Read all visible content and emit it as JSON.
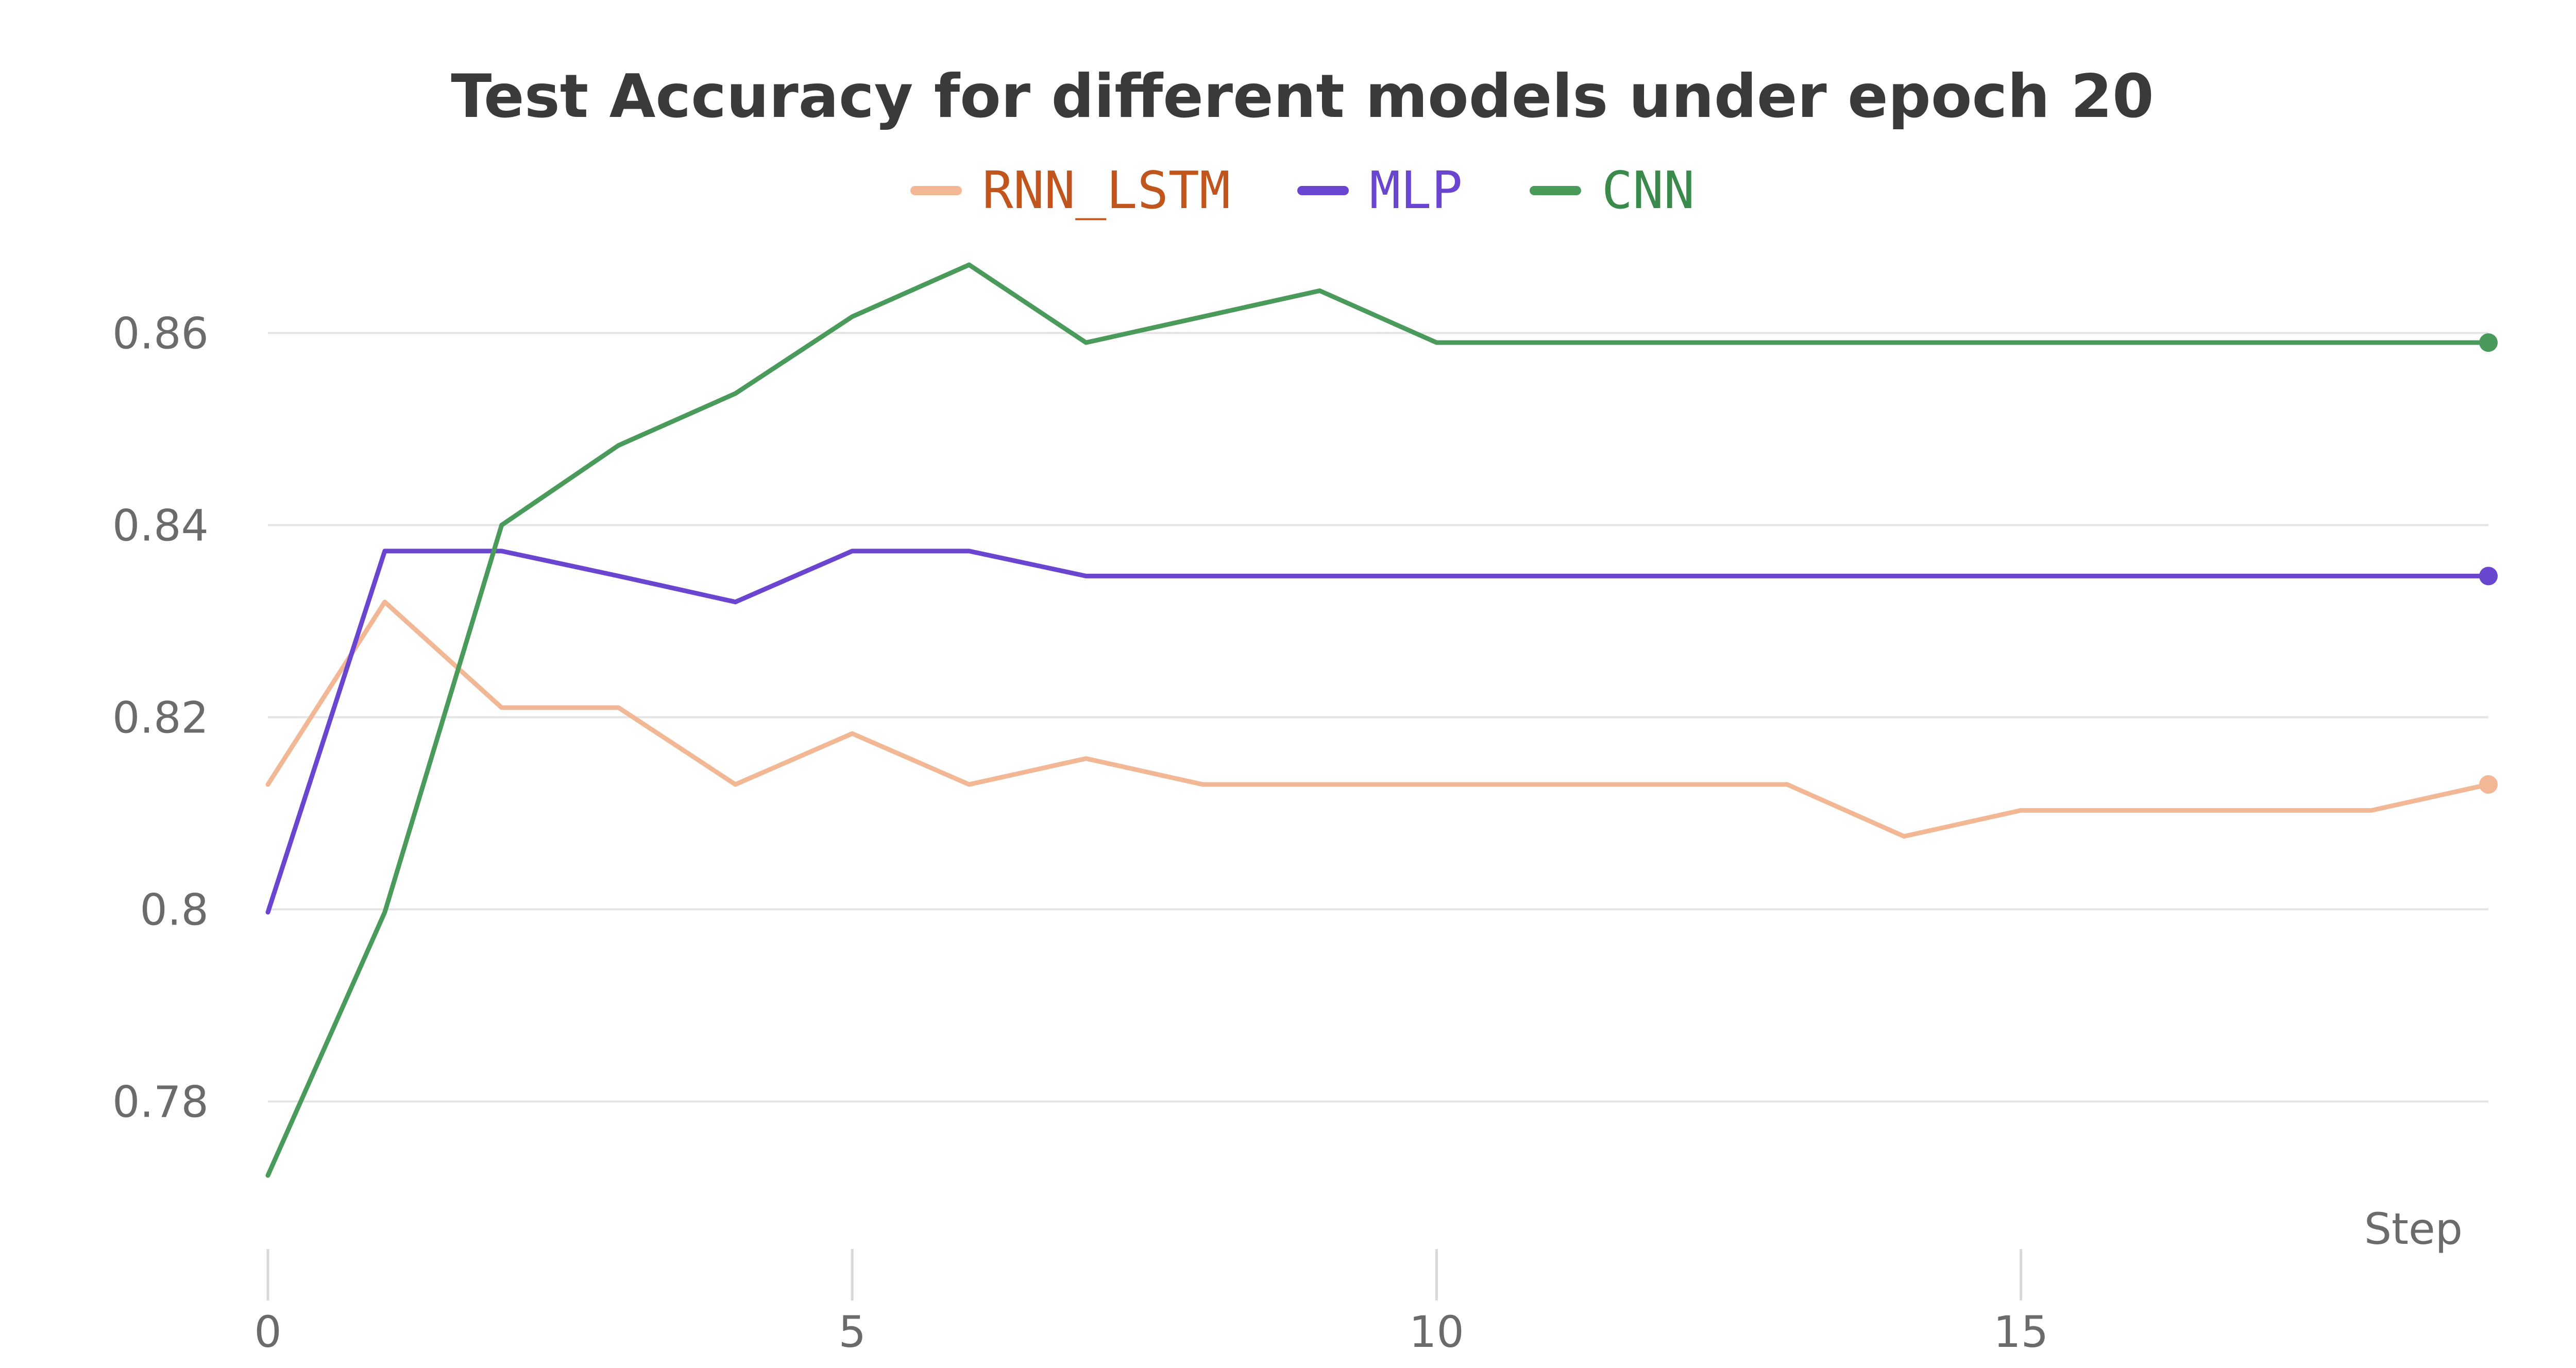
{
  "chart_data": {
    "type": "line",
    "title": "Test Accuracy for different models under epoch 20",
    "xlabel": "Step",
    "ylabel": "",
    "xlim": [
      0,
      19
    ],
    "ylim": [
      0.77,
      0.87
    ],
    "x_ticks": [
      0,
      5,
      10,
      15
    ],
    "y_ticks": [
      0.78,
      0.8,
      0.82,
      0.84,
      0.86
    ],
    "y_tick_labels": [
      "0.78",
      "0.8",
      "0.82",
      "0.84",
      "0.86"
    ],
    "grid": true,
    "legend_position": "top-center",
    "x": [
      0,
      1,
      2,
      3,
      4,
      5,
      6,
      7,
      8,
      9,
      10,
      11,
      12,
      13,
      14,
      15,
      16,
      17,
      18,
      19
    ],
    "series": [
      {
        "name": "RNN_LSTM",
        "color": "#f2b896",
        "label_color": "#c0561e",
        "values": [
          0.813,
          0.832,
          0.821,
          0.821,
          0.813,
          0.8183,
          0.813,
          0.8157,
          0.813,
          0.813,
          0.813,
          0.813,
          0.813,
          0.813,
          0.8076,
          0.8103,
          0.8103,
          0.8103,
          0.8103,
          0.813
        ]
      },
      {
        "name": "MLP",
        "color": "#6a45d0",
        "label_color": "#6a45d0",
        "values": [
          0.7997,
          0.8373,
          0.8373,
          0.8347,
          0.832,
          0.8373,
          0.8373,
          0.8347,
          0.8347,
          0.8347,
          0.8347,
          0.8347,
          0.8347,
          0.8347,
          0.8347,
          0.8347,
          0.8347,
          0.8347,
          0.8347,
          0.8347
        ]
      },
      {
        "name": "CNN",
        "color": "#4a9a5c",
        "label_color": "#3a8a4c",
        "values": [
          0.7723,
          0.7997,
          0.84,
          0.8483,
          0.8537,
          0.8617,
          0.8671,
          0.859,
          0.8617,
          0.8644,
          0.859,
          0.859,
          0.859,
          0.859,
          0.859,
          0.859,
          0.859,
          0.859,
          0.859,
          0.859
        ]
      }
    ]
  }
}
